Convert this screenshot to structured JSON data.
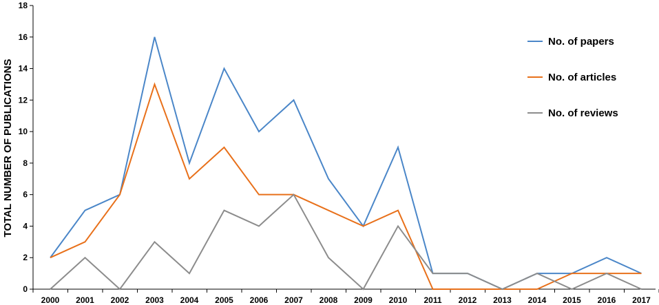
{
  "chart_data": {
    "type": "line",
    "title": "",
    "xlabel": "",
    "ylabel": "TOTAL NUMBER OF PUBLICATIONS",
    "ylim": [
      0,
      18
    ],
    "yticks": [
      0,
      2,
      4,
      6,
      8,
      10,
      12,
      14,
      16,
      18
    ],
    "grid": false,
    "legend_position": "right",
    "categories": [
      "2000",
      "2001",
      "2002",
      "2003",
      "2004",
      "2005",
      "2006",
      "2007",
      "2008",
      "2009",
      "2010",
      "2011",
      "2012",
      "2013",
      "2014",
      "2015",
      "2016",
      "2017"
    ],
    "series": [
      {
        "name": "No. of papers",
        "color": "#4a86c8",
        "values": [
          2,
          5,
          6,
          16,
          8,
          14,
          10,
          12,
          7,
          4,
          9,
          1,
          1,
          0,
          1,
          1,
          2,
          1
        ]
      },
      {
        "name": "No. of articles",
        "color": "#e8701a",
        "values": [
          2,
          3,
          6,
          13,
          7,
          9,
          6,
          6,
          5,
          4,
          5,
          0,
          0,
          0,
          0,
          1,
          1,
          1
        ]
      },
      {
        "name": "No. of reviews",
        "color": "#8c8c8c",
        "values": [
          0,
          2,
          0,
          3,
          1,
          5,
          4,
          6,
          2,
          0,
          4,
          1,
          1,
          0,
          1,
          0,
          1,
          0
        ]
      }
    ]
  }
}
